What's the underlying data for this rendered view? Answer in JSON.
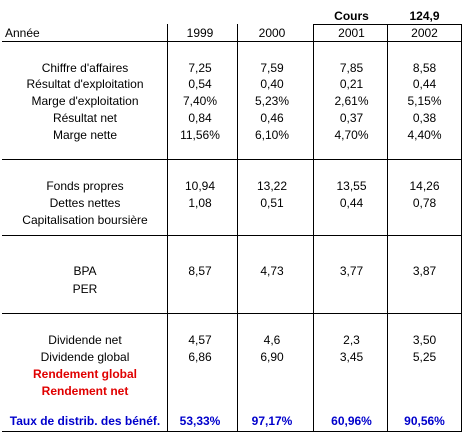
{
  "cours": {
    "label": "Cours",
    "value": "124,9"
  },
  "header": {
    "label": "Année",
    "years": [
      "1999",
      "2000",
      "2001",
      "2002"
    ]
  },
  "groups": [
    {
      "rows": [
        {
          "label": "Chiffre d'affaires",
          "values": [
            "7,25",
            "7,59",
            "7,85",
            "8,58"
          ]
        },
        {
          "label": "Résultat d'exploitation",
          "values": [
            "0,54",
            "0,40",
            "0,21",
            "0,44"
          ]
        },
        {
          "label": "Marge d'exploitation",
          "values": [
            "7,40%",
            "5,23%",
            "2,61%",
            "5,15%"
          ]
        },
        {
          "label": "Résultat net",
          "values": [
            "0,84",
            "0,46",
            "0,37",
            "0,38"
          ]
        },
        {
          "label": "Marge nette",
          "values": [
            "11,56%",
            "6,10%",
            "4,70%",
            "4,40%"
          ]
        }
      ]
    },
    {
      "rows": [
        {
          "label": "Fonds propres",
          "values": [
            "10,94",
            "13,22",
            "13,55",
            "14,26"
          ]
        },
        {
          "label": "Dettes nettes",
          "values": [
            "1,08",
            "0,51",
            "0,44",
            "0,78"
          ]
        },
        {
          "label": "Capitalisation boursière",
          "values": [
            "",
            "",
            "",
            ""
          ]
        }
      ]
    },
    {
      "rows": [
        {
          "label": "BPA",
          "values": [
            "8,57",
            "4,73",
            "3,77",
            "3,87"
          ]
        },
        {
          "label": "PER",
          "values": [
            "",
            "",
            "",
            ""
          ]
        }
      ]
    },
    {
      "rows": [
        {
          "label": "Dividende net",
          "values": [
            "4,57",
            "4,6",
            "2,3",
            "3,50"
          ]
        },
        {
          "label": "Dividende global",
          "values": [
            "6,86",
            "6,90",
            "3,45",
            "5,25"
          ]
        },
        {
          "label": "Rendement global",
          "values": [
            "",
            "",
            "",
            ""
          ],
          "style": "red"
        },
        {
          "label": "Rendement net",
          "values": [
            "",
            "",
            "",
            ""
          ],
          "style": "red"
        }
      ]
    }
  ],
  "footer": {
    "label": "Taux de distrib. des bénéf.",
    "values": [
      "53,33%",
      "97,17%",
      "60,96%",
      "90,56%"
    ]
  },
  "colors": {
    "emphasis_red": "#e00000",
    "emphasis_blue": "#0000cc"
  }
}
